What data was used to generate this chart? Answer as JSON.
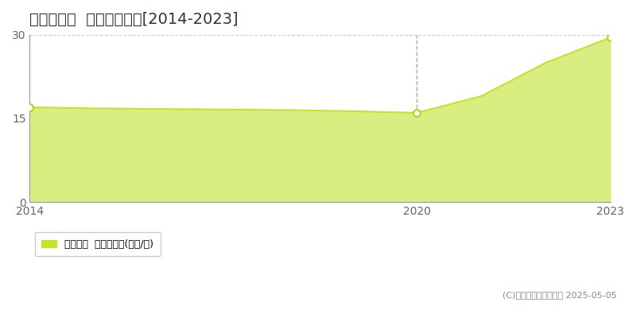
{
  "title": "飯能市新光  土地価格推移[2014-2023]",
  "years": [
    2014,
    2015,
    2016,
    2017,
    2018,
    2019,
    2020,
    2021,
    2022,
    2023
  ],
  "values": [
    17.0,
    16.8,
    16.7,
    16.6,
    16.5,
    16.3,
    16.0,
    19.0,
    25.0,
    29.5
  ],
  "line_color": "#c8e030",
  "fill_color": "#d8ee80",
  "fill_alpha": 1.0,
  "marker_color": "white",
  "marker_edge_color": "#b8d020",
  "marked_years": [
    2014,
    2020,
    2023
  ],
  "marked_values": [
    17.0,
    16.0,
    29.5
  ],
  "vline_x": 2020,
  "vline_color": "#aaaaaa",
  "ylim": [
    0,
    30
  ],
  "yticks": [
    0,
    15,
    30
  ],
  "xticks": [
    2014,
    2020,
    2023
  ],
  "grid_color": "#cccccc",
  "background_color": "#ffffff",
  "plot_bg_color": "#ffffff",
  "legend_label": "土地価格  平均坪単価(万円/坪)",
  "legend_color": "#c8e030",
  "copyright_text": "(C)土地価格ドットコム 2025-05-05",
  "title_fontsize": 14,
  "tick_fontsize": 10,
  "legend_fontsize": 9,
  "copyright_fontsize": 8
}
